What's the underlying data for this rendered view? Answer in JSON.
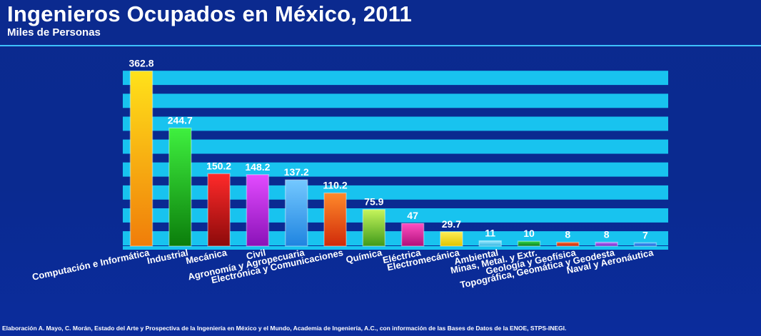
{
  "header": {
    "title": "Ingenieros Ocupados en México, 2011",
    "subtitle": "Miles de Personas"
  },
  "footer": {
    "source": "Elaboración A. Mayo, C. Morán, Estado del Arte y Prospectiva de la Ingeniería en México y el Mundo, Academia de Ingeniería, A.C., con información de las Bases de Datos de la ENOE, STPS-INEGI."
  },
  "colors": {
    "background": "#0b2a8f",
    "band": "#18c3ef",
    "accent_rule": "#3ec1ff"
  },
  "chart_data": {
    "type": "bar",
    "title": "Ingenieros Ocupados en México, 2011",
    "subtitle": "Miles de Personas",
    "xlabel": "",
    "ylabel": "",
    "ylim": [
      0,
      380
    ],
    "grid": true,
    "categories": [
      "Computación e Informática",
      "Industrial",
      "Mecánica",
      "Civil",
      "Agronomía y Agropecuaria",
      "Electrónica y Comunicaciones",
      "Química",
      "Eléctrica",
      "Electromecánica",
      "Ambiental",
      "Minas, Metal. y Extr.",
      "Geología y Geofísica",
      "Topográfica, Geomática y Geodesta",
      "Naval y Aeronáutica"
    ],
    "values": [
      362.8,
      244.7,
      150.2,
      148.2,
      137.2,
      110.2,
      75.9,
      47,
      29.7,
      11,
      10,
      8,
      8,
      7
    ],
    "value_labels": [
      "362.8",
      "244.7",
      "150.2",
      "148.2",
      "137.2",
      "110.2",
      "75.9",
      "47",
      "29.7",
      "11",
      "10",
      "8",
      "8",
      "7"
    ],
    "bar_colors": [
      [
        "#ffe21a",
        "#f07d0a"
      ],
      [
        "#3ff03f",
        "#0b7d0b"
      ],
      [
        "#ff2a2a",
        "#8c0a0a"
      ],
      [
        "#e34bff",
        "#8a12b8"
      ],
      [
        "#74c8ff",
        "#1f84e0"
      ],
      [
        "#ff8a2a",
        "#d02a0a"
      ],
      [
        "#c6f55b",
        "#3f9a1a"
      ],
      [
        "#ff4fc2",
        "#b0107a"
      ],
      [
        "#ffee55",
        "#e2c400"
      ],
      [
        "#9be9ff",
        "#2fb4e0"
      ],
      [
        "#32d94a",
        "#0a7a1a"
      ],
      [
        "#ff6a2a",
        "#c0200a"
      ],
      [
        "#c27bff",
        "#6a22c0"
      ],
      [
        "#4aa8ff",
        "#1a5ad0"
      ]
    ]
  }
}
